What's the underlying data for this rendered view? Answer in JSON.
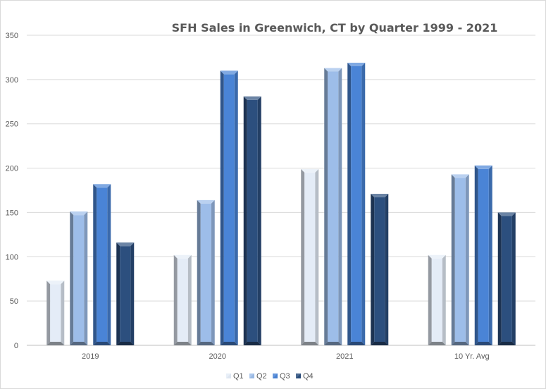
{
  "chart_data": {
    "type": "bar",
    "title": "SFH Sales in Greenwich, CT by Quarter 1999 - 2021",
    "categories": [
      "2019",
      "2020",
      "2021",
      "10 Yr. Avg"
    ],
    "series": [
      {
        "name": "Q1",
        "values": [
          73,
          102,
          199,
          102
        ],
        "color": "#e4ecf7"
      },
      {
        "name": "Q2",
        "values": [
          151,
          164,
          313,
          193
        ],
        "color": "#9dbde9"
      },
      {
        "name": "Q3",
        "values": [
          182,
          310,
          319,
          203
        ],
        "color": "#4a84d6"
      },
      {
        "name": "Q4",
        "values": [
          116,
          281,
          171,
          150
        ],
        "color": "#2c4f7e"
      }
    ],
    "ylim": [
      0,
      350
    ],
    "yticks": [
      0,
      50,
      100,
      150,
      200,
      250,
      300,
      350
    ],
    "grid": true,
    "legend": "bottom"
  }
}
